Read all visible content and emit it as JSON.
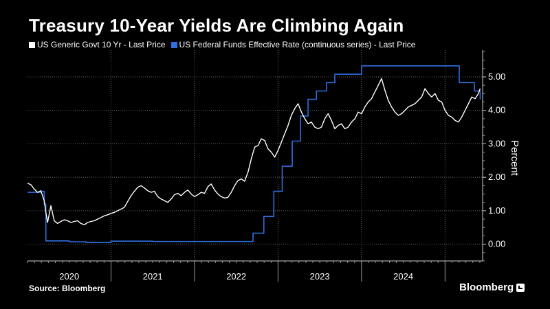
{
  "title": "Treasury 10-Year Yields Are Climbing Again",
  "source": "Source: Bloomberg",
  "brand": "Bloomberg",
  "colors": {
    "background": "#000000",
    "tenyear": "#ffffff",
    "fedfunds": "#2f6fe0",
    "grid": "#6a6a6a"
  },
  "chart_data": {
    "type": "line",
    "title": "Treasury 10-Year Yields Are Climbing Again",
    "xlabel": "",
    "ylabel": "Percent",
    "ylim": [
      -0.5,
      5.8
    ],
    "xlim": [
      2019.5,
      2024.95
    ],
    "yticks": [
      0,
      1,
      2,
      3,
      4,
      5
    ],
    "ytick_labels": [
      "0.00",
      "1.00",
      "2.00",
      "3.00",
      "4.00",
      "5.00"
    ],
    "xtick_labels": [
      {
        "label": "2020",
        "x": 2020.0
      },
      {
        "label": "2021",
        "x": 2021.0
      },
      {
        "label": "2022",
        "x": 2022.0
      },
      {
        "label": "2023",
        "x": 2023.0
      },
      {
        "label": "2024",
        "x": 2024.0
      }
    ],
    "year_boundaries": [
      2020.5,
      2021.5,
      2022.5,
      2023.5,
      2024.5
    ],
    "grid": true,
    "legend": "top-left",
    "series": [
      {
        "name": "US Generic Govt 10 Yr - Last Price",
        "color": "#ffffff",
        "step": false,
        "x": [
          2019.5,
          2019.54,
          2019.58,
          2019.62,
          2019.66,
          2019.7,
          2019.72,
          2019.74,
          2019.78,
          2019.82,
          2019.86,
          2019.9,
          2019.94,
          2019.98,
          2020.02,
          2020.06,
          2020.1,
          2020.14,
          2020.18,
          2020.22,
          2020.26,
          2020.3,
          2020.34,
          2020.38,
          2020.42,
          2020.46,
          2020.5,
          2020.54,
          2020.58,
          2020.62,
          2020.66,
          2020.7,
          2020.74,
          2020.78,
          2020.82,
          2020.86,
          2020.9,
          2020.94,
          2020.98,
          2021.02,
          2021.06,
          2021.1,
          2021.14,
          2021.18,
          2021.22,
          2021.26,
          2021.3,
          2021.34,
          2021.38,
          2021.42,
          2021.46,
          2021.5,
          2021.54,
          2021.58,
          2021.62,
          2021.66,
          2021.7,
          2021.74,
          2021.78,
          2021.82,
          2021.86,
          2021.9,
          2021.94,
          2021.98,
          2022.02,
          2022.06,
          2022.1,
          2022.14,
          2022.18,
          2022.22,
          2022.26,
          2022.3,
          2022.34,
          2022.38,
          2022.42,
          2022.46,
          2022.5,
          2022.54,
          2022.58,
          2022.62,
          2022.66,
          2022.7,
          2022.74,
          2022.78,
          2022.82,
          2022.86,
          2022.9,
          2022.94,
          2022.98,
          2023.02,
          2023.06,
          2023.1,
          2023.14,
          2023.18,
          2023.22,
          2023.26,
          2023.3,
          2023.34,
          2023.38,
          2023.42,
          2023.46,
          2023.5,
          2023.54,
          2023.58,
          2023.62,
          2023.66,
          2023.7,
          2023.74,
          2023.78,
          2023.82,
          2023.86,
          2023.9,
          2023.94,
          2023.98,
          2024.02,
          2024.06,
          2024.1,
          2024.14,
          2024.18,
          2024.22,
          2024.26,
          2024.3,
          2024.34,
          2024.38,
          2024.42,
          2024.46,
          2024.5,
          2024.54,
          2024.58,
          2024.62,
          2024.66,
          2024.7,
          2024.74,
          2024.78,
          2024.82,
          2024.86,
          2024.9,
          2024.92
        ],
        "y": [
          1.82,
          1.78,
          1.65,
          1.55,
          1.6,
          1.3,
          0.95,
          0.65,
          1.15,
          0.7,
          0.62,
          0.68,
          0.73,
          0.7,
          0.65,
          0.68,
          0.7,
          0.62,
          0.58,
          0.65,
          0.68,
          0.7,
          0.75,
          0.8,
          0.85,
          0.88,
          0.92,
          0.95,
          1.0,
          1.05,
          1.1,
          1.28,
          1.45,
          1.58,
          1.7,
          1.75,
          1.68,
          1.6,
          1.55,
          1.58,
          1.42,
          1.35,
          1.3,
          1.25,
          1.35,
          1.48,
          1.52,
          1.45,
          1.55,
          1.62,
          1.5,
          1.42,
          1.48,
          1.55,
          1.52,
          1.72,
          1.8,
          1.62,
          1.5,
          1.42,
          1.38,
          1.4,
          1.55,
          1.75,
          1.9,
          1.95,
          1.88,
          2.15,
          2.55,
          2.9,
          2.95,
          3.15,
          3.1,
          2.85,
          2.75,
          2.6,
          2.8,
          3.05,
          3.3,
          3.55,
          3.85,
          4.05,
          4.2,
          3.95,
          3.75,
          3.6,
          3.65,
          3.5,
          3.45,
          3.5,
          3.75,
          3.9,
          3.7,
          3.45,
          3.55,
          3.6,
          3.45,
          3.5,
          3.65,
          3.75,
          3.95,
          3.9,
          4.1,
          4.25,
          4.35,
          4.55,
          4.75,
          4.95,
          4.6,
          4.3,
          4.1,
          3.95,
          3.85,
          3.9,
          4.0,
          4.1,
          4.15,
          4.2,
          4.3,
          4.4,
          4.65,
          4.5,
          4.4,
          4.5,
          4.3,
          4.25,
          4.0,
          3.85,
          3.8,
          3.7,
          3.65,
          3.8,
          4.0,
          4.2,
          4.4,
          4.35,
          4.5,
          4.65
        ]
      },
      {
        "name": "US Federal Funds Effective Rate (continuous series) - Last Price",
        "color": "#2f6fe0",
        "step": true,
        "x": [
          2019.5,
          2019.6,
          2019.66,
          2019.7,
          2019.72,
          2020.0,
          2020.2,
          2020.5,
          2021.0,
          2021.5,
          2022.0,
          2022.2,
          2022.33,
          2022.45,
          2022.55,
          2022.67,
          2022.77,
          2022.86,
          2022.96,
          2023.08,
          2023.18,
          2023.3,
          2023.5,
          2023.55,
          2023.6,
          2024.0,
          2024.5,
          2024.67,
          2024.75,
          2024.85,
          2024.92
        ],
        "y": [
          1.55,
          1.55,
          1.58,
          1.2,
          0.1,
          0.07,
          0.05,
          0.09,
          0.08,
          0.08,
          0.08,
          0.33,
          0.83,
          1.58,
          2.33,
          3.08,
          3.83,
          4.33,
          4.58,
          4.83,
          5.08,
          5.08,
          5.33,
          5.33,
          5.33,
          5.33,
          5.33,
          4.83,
          4.83,
          4.58,
          4.33
        ]
      }
    ]
  }
}
